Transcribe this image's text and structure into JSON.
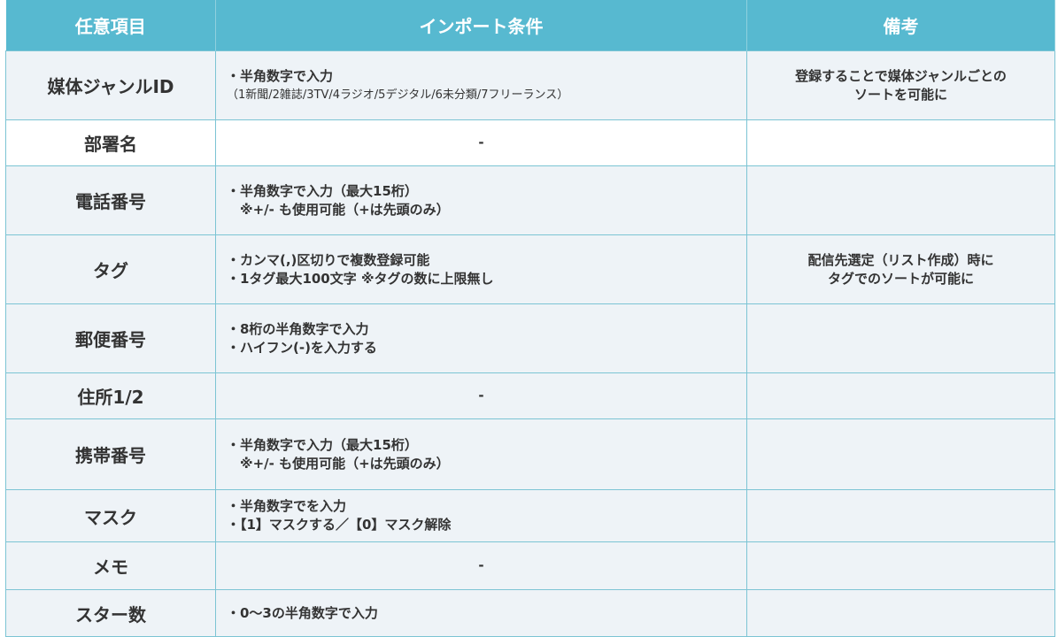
{
  "headers": [
    "任意項目",
    "インポート条件",
    "備考"
  ],
  "rows": [
    {
      "item": "媒体ジャンルID",
      "conditions": [
        "・半角数字で入力",
        "（1新聞/2雑誌/3TV/4ラジオ/5デジタル/6未分類/7フリーランス）"
      ],
      "note": [
        "登録することで媒体ジャンルごとの",
        "ソートを可能に"
      ]
    },
    {
      "item": "部署名",
      "conditions": [
        "-"
      ],
      "note": []
    },
    {
      "item": "電話番号",
      "conditions": [
        "・半角数字で入力（最大15桁）",
        "　※+/- も使用可能（+は先頭のみ）"
      ],
      "note": []
    },
    {
      "item": "タグ",
      "conditions": [
        "・カンマ(,)区切りで複数登録可能",
        "・1タグ最大100文字 ※タグの数に上限無し"
      ],
      "note": [
        "配信先選定（リスト作成）時に",
        "タグでのソートが可能に"
      ]
    },
    {
      "item": "郵便番号",
      "conditions": [
        "・8桁の半角数字で入力",
        "・ハイフン(-)を入力する"
      ],
      "note": []
    },
    {
      "item": "住所1/2",
      "conditions": [
        "-"
      ],
      "note": []
    },
    {
      "item": "携帯番号",
      "conditions": [
        "・半角数字で入力（最大15桁）",
        "　※+/- も使用可能（+は先頭のみ）"
      ],
      "note": []
    },
    {
      "item": "マスク",
      "conditions": [
        "・半角数字でを入力",
        "・【1】マスクする／【0】マスク解除"
      ],
      "note": []
    },
    {
      "item": "メモ",
      "conditions": [
        "-"
      ],
      "note": []
    },
    {
      "item": "スター数",
      "conditions": [
        "・0～3の半角数字で入力"
      ],
      "note": []
    }
  ]
}
